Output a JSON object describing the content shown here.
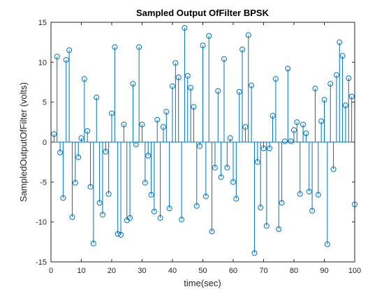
{
  "chart_data": {
    "type": "stem",
    "title": "Sampled Output OfFilter BPSK",
    "xlabel": "time(sec)",
    "ylabel": "SampledOutputOfFilter (volts)",
    "xlim": [
      0,
      100
    ],
    "ylim": [
      -15,
      15
    ],
    "xticks": [
      0,
      10,
      20,
      30,
      40,
      50,
      60,
      70,
      80,
      90,
      100
    ],
    "yticks": [
      -15,
      -10,
      -5,
      0,
      5,
      10,
      15
    ],
    "grid": false,
    "legend": "none",
    "x": [
      1,
      2,
      3,
      4,
      5,
      6,
      7,
      8,
      9,
      10,
      11,
      12,
      13,
      14,
      15,
      16,
      17,
      18,
      19,
      20,
      21,
      22,
      23,
      24,
      25,
      26,
      27,
      28,
      29,
      30,
      31,
      32,
      33,
      34,
      35,
      36,
      37,
      38,
      39,
      40,
      41,
      42,
      43,
      44,
      45,
      46,
      47,
      48,
      49,
      50,
      51,
      52,
      53,
      54,
      55,
      56,
      57,
      58,
      59,
      60,
      61,
      62,
      63,
      64,
      65,
      66,
      67,
      68,
      69,
      70,
      71,
      72,
      73,
      74,
      75,
      76,
      77,
      78,
      79,
      80,
      81,
      82,
      83,
      84,
      85,
      86,
      87,
      88,
      89,
      90,
      91,
      92,
      93,
      94,
      95,
      96,
      97,
      98,
      99,
      100
    ],
    "y": [
      1.0,
      10.7,
      -1.3,
      -7.0,
      10.3,
      11.5,
      -9.4,
      -5.1,
      -1.9,
      0.5,
      7.9,
      1.4,
      -5.6,
      -12.7,
      5.6,
      -7.6,
      -9.1,
      -1.2,
      -6.5,
      3.6,
      11.9,
      -11.5,
      -11.6,
      2.2,
      -9.8,
      -9.5,
      7.3,
      -0.3,
      11.9,
      2.2,
      -5.1,
      -1.7,
      -6.6,
      -8.7,
      2.8,
      -9.5,
      1.9,
      3.8,
      -8.3,
      7.0,
      9.9,
      8.1,
      -9.7,
      14.3,
      8.3,
      6.8,
      4.4,
      -8.0,
      -0.5,
      12.1,
      -6.8,
      13.3,
      -11.2,
      -3.2,
      6.4,
      -4.4,
      10.4,
      -3.2,
      0.5,
      -5.0,
      -7.1,
      6.3,
      11.6,
      1.9,
      13.4,
      7.1,
      -13.9,
      -2.5,
      -8.2,
      -0.8,
      -10.5,
      -0.8,
      3.3,
      7.9,
      -10.9,
      -7.6,
      0.1,
      9.2,
      0.1,
      1.5,
      2.5,
      -6.5,
      2.2,
      1.1,
      -6.2,
      -8.6,
      6.7,
      -6.6,
      2.6,
      5.3,
      -12.8,
      7.3,
      -3.4,
      8.4,
      12.5,
      10.8,
      4.6,
      8.0,
      5.7,
      -7.8
    ],
    "colors": {
      "stem": "#0072bd",
      "axes": "#262626",
      "baseline": "#0072bd"
    }
  }
}
